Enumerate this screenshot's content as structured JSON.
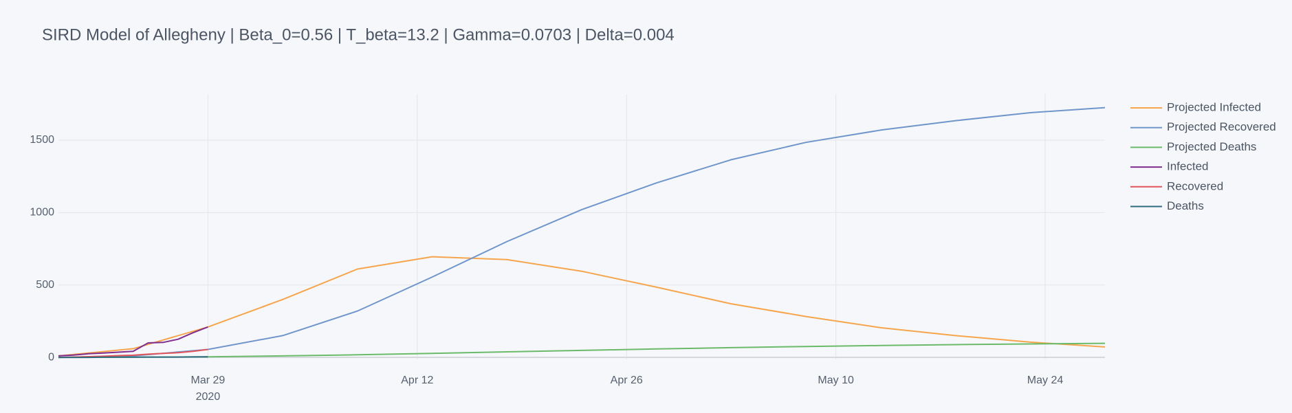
{
  "chart_data": {
    "type": "line",
    "title": "SIRD Model of Allegheny | Beta_0=0.56 | T_beta=13.2 | Gamma=0.0703 | Delta=0.004",
    "xlim": [
      "2020-03-19",
      "2020-05-28"
    ],
    "xticks": [
      {
        "value": "2020-03-29",
        "label": "Mar 29"
      },
      {
        "value": "2020-04-12",
        "label": "Apr 12"
      },
      {
        "value": "2020-04-26",
        "label": "Apr 26"
      },
      {
        "value": "2020-05-10",
        "label": "May 10"
      },
      {
        "value": "2020-05-24",
        "label": "May 24"
      }
    ],
    "x_year_label": "2020",
    "ylim": [
      -14,
      1818
    ],
    "yticks": [
      0,
      500,
      1000,
      1500
    ],
    "grid": true,
    "legend": "right",
    "series": [
      {
        "name": "Projected Infected",
        "color": "#f6a54c",
        "x": [
          "2020-03-19",
          "2020-03-24",
          "2020-03-29",
          "2020-04-03",
          "2020-04-08",
          "2020-04-13",
          "2020-04-18",
          "2020-04-23",
          "2020-04-28",
          "2020-05-03",
          "2020-05-08",
          "2020-05-13",
          "2020-05-18",
          "2020-05-23",
          "2020-05-28"
        ],
        "values": [
          10,
          60,
          210,
          400,
          610,
          695,
          675,
          595,
          485,
          370,
          282,
          205,
          150,
          105,
          72
        ]
      },
      {
        "name": "Projected Recovered",
        "color": "#6f95cb",
        "x": [
          "2020-03-19",
          "2020-03-24",
          "2020-03-29",
          "2020-04-03",
          "2020-04-08",
          "2020-04-13",
          "2020-04-18",
          "2020-04-23",
          "2020-04-28",
          "2020-05-03",
          "2020-05-08",
          "2020-05-13",
          "2020-05-18",
          "2020-05-23",
          "2020-05-28"
        ],
        "values": [
          0,
          10,
          55,
          150,
          320,
          555,
          800,
          1020,
          1205,
          1365,
          1485,
          1570,
          1635,
          1690,
          1725
        ]
      },
      {
        "name": "Projected Deaths",
        "color": "#6aba6a",
        "x": [
          "2020-03-19",
          "2020-03-24",
          "2020-03-29",
          "2020-04-03",
          "2020-04-08",
          "2020-04-13",
          "2020-04-18",
          "2020-04-23",
          "2020-04-28",
          "2020-05-03",
          "2020-05-08",
          "2020-05-13",
          "2020-05-18",
          "2020-05-23",
          "2020-05-28"
        ],
        "values": [
          0,
          1,
          4,
          10,
          18,
          28,
          38,
          48,
          58,
          67,
          75,
          82,
          88,
          93,
          97
        ]
      },
      {
        "name": "Infected",
        "color": "#7f2d8f",
        "x": [
          "2020-03-19",
          "2020-03-20",
          "2020-03-21",
          "2020-03-22",
          "2020-03-23",
          "2020-03-24",
          "2020-03-25",
          "2020-03-26",
          "2020-03-27",
          "2020-03-28",
          "2020-03-29"
        ],
        "values": [
          10,
          16,
          25,
          30,
          36,
          42,
          100,
          103,
          125,
          170,
          210
        ]
      },
      {
        "name": "Recovered",
        "color": "#e2545a",
        "x": [
          "2020-03-19",
          "2020-03-20",
          "2020-03-21",
          "2020-03-22",
          "2020-03-23",
          "2020-03-24",
          "2020-03-25",
          "2020-03-26",
          "2020-03-27",
          "2020-03-28",
          "2020-03-29"
        ],
        "values": [
          0,
          2,
          5,
          8,
          12,
          15,
          22,
          28,
          32,
          42,
          55
        ]
      },
      {
        "name": "Deaths",
        "color": "#2e6b7f",
        "x": [
          "2020-03-19",
          "2020-03-20",
          "2020-03-21",
          "2020-03-22",
          "2020-03-23",
          "2020-03-24",
          "2020-03-25",
          "2020-03-26",
          "2020-03-27",
          "2020-03-28",
          "2020-03-29"
        ],
        "values": [
          0,
          0,
          0,
          1,
          1,
          1,
          2,
          2,
          2,
          3,
          4
        ]
      }
    ]
  }
}
